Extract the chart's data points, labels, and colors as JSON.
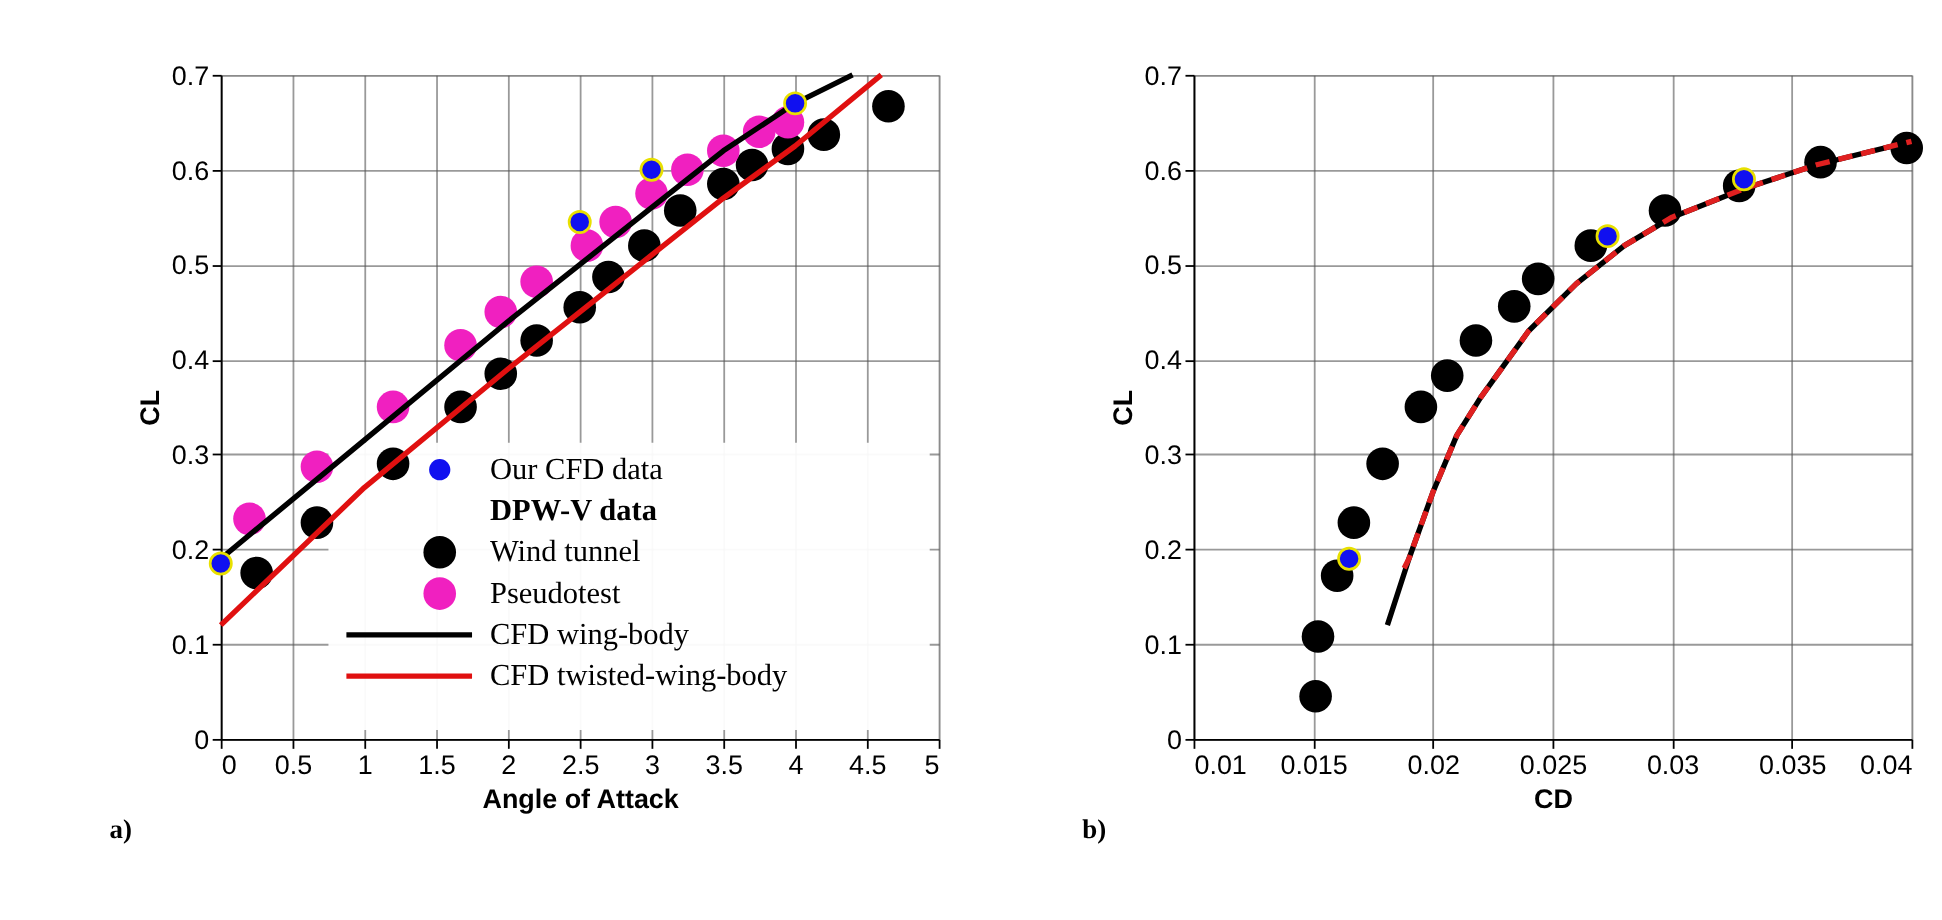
{
  "chart_data": [
    {
      "type": "scatter",
      "xlabel": "Angle of Attack",
      "ylabel": "CL",
      "xlim": [
        0,
        5
      ],
      "ylim": [
        0,
        0.7
      ],
      "xticks": [
        0,
        0.5,
        1,
        1.5,
        2,
        2.5,
        3,
        3.5,
        4,
        4.5,
        5
      ],
      "yticks": [
        0,
        0.1,
        0.2,
        0.3,
        0.4,
        0.5,
        0.6,
        0.7
      ],
      "grid": true,
      "legend": "bottom right",
      "legend_title": "DPW-V data",
      "annotations": [
        "a)"
      ],
      "series": [
        {
          "name": "Our CFD data",
          "color": "#1010f0",
          "x": [
            0,
            2.5,
            3.0,
            4.0
          ],
          "values": [
            0.185,
            0.545,
            0.6,
            0.67
          ]
        },
        {
          "name": "Wind tunnel",
          "color": "#000000",
          "x": [
            0.25,
            0.67,
            1.2,
            1.67,
            1.95,
            2.2,
            2.5,
            2.7,
            2.95,
            3.2,
            3.5,
            3.7,
            3.95,
            4.2,
            4.65
          ],
          "values": [
            0.175,
            0.228,
            0.29,
            0.35,
            0.385,
            0.42,
            0.455,
            0.487,
            0.52,
            0.557,
            0.585,
            0.605,
            0.622,
            0.637,
            0.667
          ]
        },
        {
          "name": "Pseudotest",
          "color": "#f020c0",
          "x": [
            0.2,
            0.67,
            1.2,
            1.67,
            1.95,
            2.2,
            2.55,
            2.75,
            3.0,
            3.25,
            3.5,
            3.75,
            3.95
          ],
          "values": [
            0.232,
            0.287,
            0.35,
            0.415,
            0.45,
            0.482,
            0.52,
            0.545,
            0.575,
            0.6,
            0.62,
            0.64,
            0.65
          ]
        },
        {
          "name": "CFD wing-body",
          "type": "line",
          "color": "#000000",
          "x": [
            0,
            1,
            2,
            2.5,
            3,
            3.5,
            4,
            4.4
          ],
          "values": [
            0.19,
            0.315,
            0.44,
            0.5,
            0.56,
            0.62,
            0.67,
            0.7
          ]
        },
        {
          "name": "CFD twisted-wing-body",
          "type": "line",
          "color": "#e01010",
          "x": [
            0,
            1,
            2,
            2.5,
            3,
            3.5,
            4,
            4.6
          ],
          "values": [
            0.12,
            0.265,
            0.39,
            0.45,
            0.51,
            0.57,
            0.625,
            0.7
          ]
        }
      ]
    },
    {
      "type": "scatter",
      "xlabel": "CD",
      "ylabel": "CL",
      "xlim": [
        0.01,
        0.04
      ],
      "ylim": [
        0,
        0.7
      ],
      "xticks": [
        0.01,
        0.015,
        0.02,
        0.025,
        0.03,
        0.035,
        0.04
      ],
      "yticks": [
        0,
        0.1,
        0.2,
        0.3,
        0.4,
        0.5,
        0.6,
        0.7
      ],
      "grid": true,
      "annotations": [
        "b)"
      ],
      "series": [
        {
          "color": "#1010f0",
          "x": [
            0.0165,
            0.0273,
            0.033
          ],
          "values": [
            0.19,
            0.53,
            0.59
          ]
        },
        {
          "color": "#000000",
          "x": [
            0.0151,
            0.0152,
            0.016,
            0.0167,
            0.0179,
            0.0195,
            0.0206,
            0.0218,
            0.0234,
            0.0244,
            0.0266,
            0.0297,
            0.0328,
            0.0362,
            0.0398
          ],
          "values": [
            0.045,
            0.108,
            0.172,
            0.228,
            0.29,
            0.35,
            0.383,
            0.42,
            0.456,
            0.485,
            0.52,
            0.557,
            0.583,
            0.608,
            0.623
          ]
        },
        {
          "type": "line",
          "color": "#000000",
          "x": [
            0.0181,
            0.019,
            0.02,
            0.021,
            0.022,
            0.024,
            0.026,
            0.028,
            0.03,
            0.033,
            0.036,
            0.04
          ],
          "values": [
            0.12,
            0.19,
            0.26,
            0.32,
            0.36,
            0.43,
            0.48,
            0.52,
            0.55,
            0.58,
            0.605,
            0.63
          ]
        },
        {
          "type": "line",
          "line_style": "dashed",
          "color": "#e02020",
          "x": [
            0.0188,
            0.019,
            0.02,
            0.021,
            0.022,
            0.024,
            0.026,
            0.028,
            0.03,
            0.033,
            0.036,
            0.04
          ],
          "values": [
            0.18,
            0.19,
            0.26,
            0.32,
            0.36,
            0.43,
            0.48,
            0.52,
            0.55,
            0.58,
            0.605,
            0.63
          ]
        }
      ]
    }
  ]
}
